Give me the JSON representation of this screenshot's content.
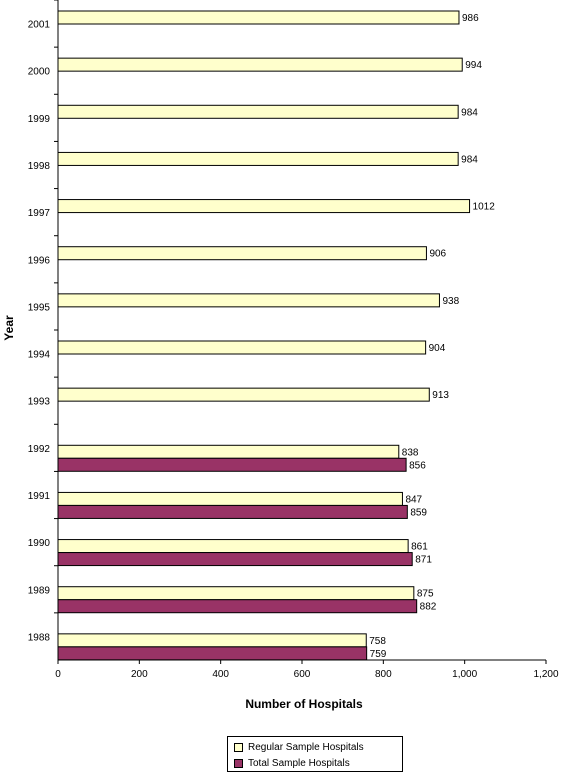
{
  "chart_data": {
    "type": "bar",
    "orientation": "horizontal",
    "categories": [
      "2001",
      "2000",
      "1999",
      "1998",
      "1997",
      "1996",
      "1995",
      "1994",
      "1993",
      "1992",
      "1991",
      "1990",
      "1989",
      "1988"
    ],
    "series": [
      {
        "name": "Regular Sample Hospitals",
        "color": "#FFFFCC",
        "values": [
          986,
          994,
          984,
          984,
          1012,
          906,
          938,
          904,
          913,
          838,
          847,
          861,
          875,
          758
        ]
      },
      {
        "name": "Total Sample Hospitals",
        "color": "#993366",
        "values": [
          null,
          null,
          null,
          null,
          null,
          null,
          null,
          null,
          null,
          856,
          859,
          871,
          882,
          759
        ]
      }
    ],
    "xlabel": "Number of Hospitals",
    "ylabel": "Year",
    "xlim": [
      0,
      1200
    ],
    "xticks": [
      0,
      200,
      400,
      600,
      800,
      1000,
      1200
    ],
    "xtick_labels": [
      "0",
      "200",
      "400",
      "600",
      "800",
      "1,000",
      "1,200"
    ],
    "grid": false,
    "legend_position": "bottom"
  }
}
